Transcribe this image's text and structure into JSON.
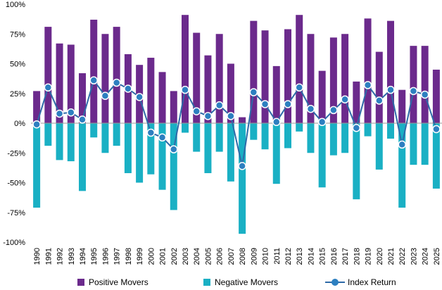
{
  "chart_data": {
    "type": "bar",
    "title": "",
    "xlabel": "",
    "ylabel": "",
    "ylim": [
      -100,
      100
    ],
    "y_ticks": [
      "-100%",
      "-75%",
      "-50%",
      "-25%",
      "0%",
      "25%",
      "50%",
      "75%",
      "100%"
    ],
    "y_tick_values": [
      -100,
      -75,
      -50,
      -25,
      0,
      25,
      50,
      75,
      100
    ],
    "grid": false,
    "legend_position": "bottom",
    "categories": [
      "1990",
      "1991",
      "1992",
      "1993",
      "1994",
      "1995",
      "1996",
      "1997",
      "1998",
      "1999",
      "2000",
      "2001",
      "2002",
      "2003",
      "2004",
      "2005",
      "2006",
      "2007",
      "2008",
      "2009",
      "2010",
      "2011",
      "2012",
      "2013",
      "2014",
      "2015",
      "2016",
      "2017",
      "2018",
      "2019",
      "2020",
      "2021",
      "2022",
      "2023",
      "2024",
      "2025"
    ],
    "series": [
      {
        "name": "Positive Movers",
        "type": "bar",
        "color": "#6b2a8c",
        "values": [
          27,
          81,
          67,
          66,
          42,
          87,
          75,
          81,
          58,
          49,
          55,
          43,
          27,
          91,
          76,
          57,
          75,
          50,
          5,
          86,
          78,
          48,
          79,
          91,
          75,
          44,
          72,
          75,
          35,
          88,
          60,
          86,
          28,
          65,
          65,
          45
        ]
      },
      {
        "name": "Negative Movers",
        "type": "bar",
        "color": "#1ab0c4",
        "values": [
          -71,
          -19,
          -31,
          -32,
          -57,
          -12,
          -25,
          -19,
          -42,
          -50,
          -43,
          -56,
          -73,
          -8,
          -24,
          -42,
          -24,
          -49,
          -93,
          -14,
          -22,
          -51,
          -21,
          -7,
          -25,
          -54,
          -27,
          -25,
          -64,
          -11,
          -39,
          -13,
          -71,
          -35,
          -35,
          -55
        ]
      },
      {
        "name": "Index Return",
        "type": "line",
        "color": "#2e6aa8",
        "marker_fill": "#2d7fc0",
        "values": [
          -1,
          30,
          8,
          9,
          3,
          36,
          23,
          34,
          29,
          22,
          -8,
          -12,
          -22,
          28,
          10,
          6,
          15,
          6,
          -36,
          26,
          16,
          1,
          16,
          30,
          12,
          1,
          11,
          20,
          -4,
          32,
          19,
          28,
          -18,
          27,
          24,
          -5
        ]
      }
    ]
  }
}
